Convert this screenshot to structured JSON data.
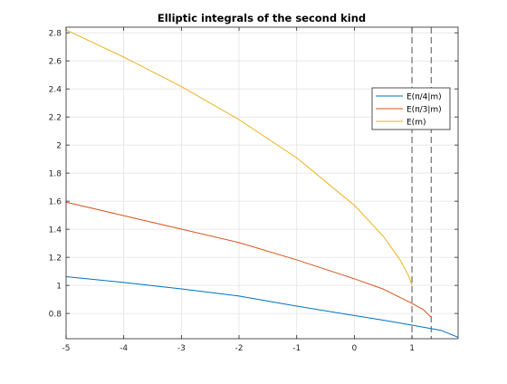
{
  "chart_data": {
    "type": "line",
    "title": "Elliptic integrals of the second kind",
    "xlabel": "",
    "ylabel": "",
    "xlim": [
      -5,
      1.8
    ],
    "ylim": [
      0.62,
      2.84
    ],
    "xticks": [
      -5,
      -4,
      -3,
      -2,
      -1,
      0,
      1
    ],
    "yticks": [
      0.8,
      1,
      1.2,
      1.4,
      1.6,
      1.8,
      2,
      2.2,
      2.4,
      2.6,
      2.8
    ],
    "xtick_labels": [
      "-5",
      "-4",
      "-3",
      "-2",
      "-1",
      "0",
      "1"
    ],
    "ytick_labels": [
      "0.8",
      "1",
      "1.2",
      "1.4",
      "1.6",
      "1.8",
      "2",
      "2.2",
      "2.4",
      "2.6",
      "2.8"
    ],
    "grid": true,
    "legend_position": "upper-right",
    "series": [
      {
        "name": "E(π/4|m)",
        "color": "#0072bd",
        "x": [
          -5,
          -4,
          -3,
          -2,
          -1,
          0,
          0.5,
          1,
          1.5,
          1.8
        ],
        "y": [
          1.062,
          1.021,
          0.975,
          0.924,
          0.852,
          0.785,
          0.752,
          0.717,
          0.68,
          0.63
        ]
      },
      {
        "name": "E(π/3|m)",
        "color": "#d95319",
        "x": [
          -5,
          -4,
          -3,
          -2,
          -1,
          0,
          0.5,
          1,
          1.2,
          1.333
        ],
        "y": [
          1.593,
          1.497,
          1.401,
          1.305,
          1.182,
          1.047,
          0.974,
          0.872,
          0.826,
          0.773
        ]
      },
      {
        "name": "E(m)",
        "color": "#edb120",
        "x": [
          -5,
          -4,
          -3,
          -2,
          -1,
          0,
          0.5,
          0.8,
          0.95,
          1
        ],
        "y": [
          2.82,
          2.627,
          2.417,
          2.181,
          1.909,
          1.571,
          1.351,
          1.178,
          1.06,
          1.0
        ]
      }
    ],
    "reference_lines": [
      {
        "x": 1,
        "style": "dashed",
        "color": "#555555"
      },
      {
        "x": 1.333,
        "style": "dashed",
        "color": "#555555"
      }
    ]
  }
}
